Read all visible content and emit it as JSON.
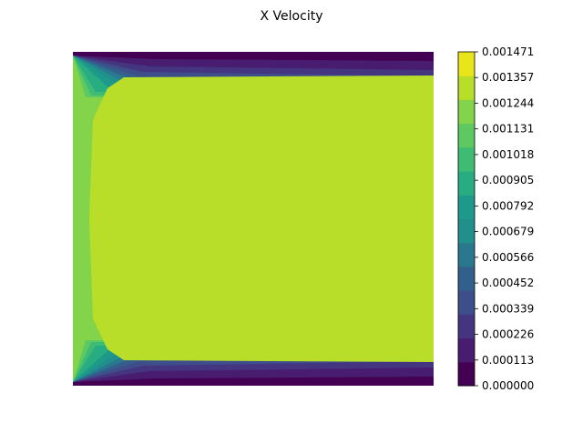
{
  "chart_data": {
    "type": "heatmap",
    "style": "filled-contour",
    "title": "X Velocity",
    "xlabel": "",
    "ylabel": "",
    "grid": false,
    "colormap": "viridis",
    "colorbar": {
      "position": "right",
      "ticks": [
        0.0,
        0.000113,
        0.000226,
        0.000339,
        0.000452,
        0.000566,
        0.000679,
        0.000792,
        0.000905,
        0.001018,
        0.001131,
        0.001244,
        0.001357,
        0.001471
      ],
      "tick_labels": [
        "0.000000",
        "0.000113",
        "0.000226",
        "0.000339",
        "0.000452",
        "0.000566",
        "0.000679",
        "0.000792",
        "0.000905",
        "0.001018",
        "0.001131",
        "0.001244",
        "0.001357",
        "0.001471"
      ],
      "colors": [
        "#440154",
        "#481d6f",
        "#453581",
        "#3d4e8a",
        "#335f8c",
        "#2a788e",
        "#21908d",
        "#1f9a8a",
        "#27ad81",
        "#3fbc73",
        "#5ec962",
        "#84d44b",
        "#b8de29",
        "#e8e51a"
      ]
    }
  }
}
